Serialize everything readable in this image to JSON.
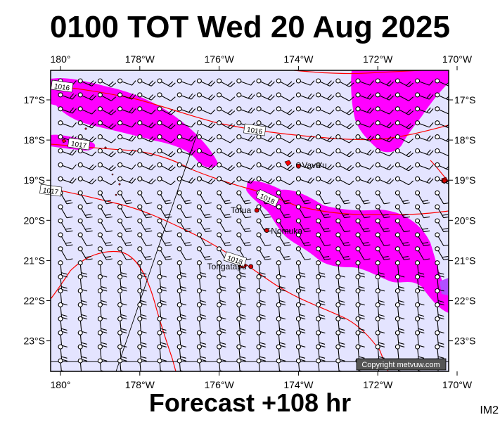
{
  "title": "0100 TOT Wed 20 Aug 2025",
  "footer": "Forecast +108 hr",
  "map_code": "IM2",
  "copyright": "Copyright metvuw.com",
  "colors": {
    "ocean": "#e4e4ff",
    "precip": "#ff00ff",
    "isobar": "#ff0000",
    "land": "#ff0000",
    "frame": "#000000"
  },
  "lon_labels": [
    "180°",
    "178°W",
    "176°W",
    "174°W",
    "172°W",
    "170°W"
  ],
  "lat_labels": [
    "17°S",
    "18°S",
    "19°S",
    "20°S",
    "21°S",
    "22°S",
    "23°S"
  ],
  "isobar_labels": [
    "1016",
    "1016",
    "1017",
    "1018",
    "1017",
    "1018"
  ],
  "places": [
    {
      "name": "Vava'u",
      "lon": -174.0,
      "lat": -18.65
    },
    {
      "name": "Tofua",
      "lon": -175.05,
      "lat": -19.75
    },
    {
      "name": "Nomuka",
      "lon": -174.8,
      "lat": -20.25
    },
    {
      "name": "Tongatapu",
      "lon": -175.2,
      "lat": -21.15
    }
  ]
}
